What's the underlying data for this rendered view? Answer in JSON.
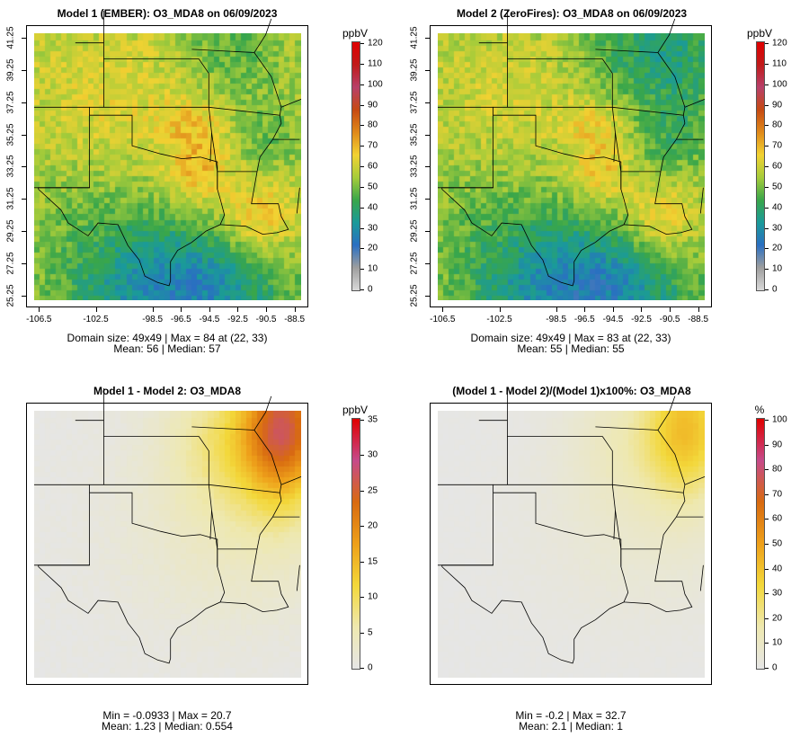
{
  "panels": [
    {
      "id": "p1",
      "title": "Model 1 (EMBER): O3_MDA8 on 06/09/2023",
      "stats_line1": "Domain size: 49x49 | Max = 84 at (22, 33)",
      "stats_line2": "Mean: 56 |  Median: 57",
      "field": "model1",
      "show_axes": true,
      "colorbar": {
        "unit": "ppbV",
        "scale": "conc",
        "ticks": [
          "0",
          "10",
          "20",
          "30",
          "40",
          "50",
          "60",
          "70",
          "80",
          "90",
          "100",
          "110",
          "120"
        ],
        "range": [
          0,
          120
        ]
      }
    },
    {
      "id": "p2",
      "title": "Model 2 (ZeroFires): O3_MDA8 on 06/09/2023",
      "stats_line1": "Domain size: 49x49 | Max = 83 at (22, 33)",
      "stats_line2": "Mean: 55 |  Median: 55",
      "field": "model2",
      "show_axes": true,
      "colorbar": {
        "unit": "ppbV",
        "scale": "conc",
        "ticks": [
          "0",
          "10",
          "20",
          "30",
          "40",
          "50",
          "60",
          "70",
          "80",
          "90",
          "100",
          "110",
          "120"
        ],
        "range": [
          0,
          120
        ]
      }
    },
    {
      "id": "p3",
      "title": "Model 1 - Model 2: O3_MDA8",
      "stats_line1": "Min = -0.0933 | Max = 20.7",
      "stats_line2": "Mean: 1.23 |  Median: 0.554",
      "field": "diff",
      "show_axes": false,
      "colorbar": {
        "unit": "ppbV",
        "scale": "diff",
        "ticks": [
          "0",
          "5",
          "10",
          "15",
          "20",
          "25",
          "30",
          "35"
        ],
        "range": [
          0,
          35
        ]
      }
    },
    {
      "id": "p4",
      "title": "(Model 1 - Model 2)/(Model 1)x100%: O3_MDA8",
      "stats_line1": "Min = -0.2 | Max = 32.7",
      "stats_line2": "Mean: 2.1 |  Median: 1",
      "field": "pct",
      "show_axes": false,
      "colorbar": {
        "unit": "%",
        "scale": "diff",
        "ticks": [
          "0",
          "10",
          "20",
          "30",
          "40",
          "50",
          "60",
          "70",
          "80",
          "90",
          "100"
        ],
        "range": [
          0,
          100
        ]
      }
    }
  ],
  "axes": {
    "x_ticks": [
      "-106.5",
      "-102.5",
      "-98.5",
      "-96.5",
      "-94.5",
      "-92.5",
      "-90.5",
      "-88.5"
    ],
    "x_values": [
      -106.5,
      -102.5,
      -98.5,
      -96.5,
      -94.5,
      -92.5,
      -90.5,
      -88.5
    ],
    "y_ticks": [
      "25.25",
      "27.25",
      "29.25",
      "31.25",
      "33.25",
      "35.25",
      "37.25",
      "39.25",
      "41.25"
    ],
    "y_values": [
      25.25,
      27.25,
      29.25,
      31.25,
      33.25,
      35.25,
      37.25,
      39.25,
      41.25
    ],
    "lon_range": [
      -106.9,
      -88.1
    ],
    "lat_range": [
      25.0,
      41.6
    ]
  },
  "colors": {
    "conc_ramp": [
      "#d9d9d9",
      "#9e9e9e",
      "#2a6fc2",
      "#1a9a9a",
      "#39a64a",
      "#a6cc3a",
      "#f2d232",
      "#e08a1a",
      "#c64a12",
      "#b8406a",
      "#c01a1a",
      "#e00000"
    ],
    "diff_ramp": [
      "#e6e6e6",
      "#eee8b0",
      "#f3d83a",
      "#eea01a",
      "#d86a10",
      "#c64a8a",
      "#e00000"
    ],
    "state_lines": "#000000"
  }
}
